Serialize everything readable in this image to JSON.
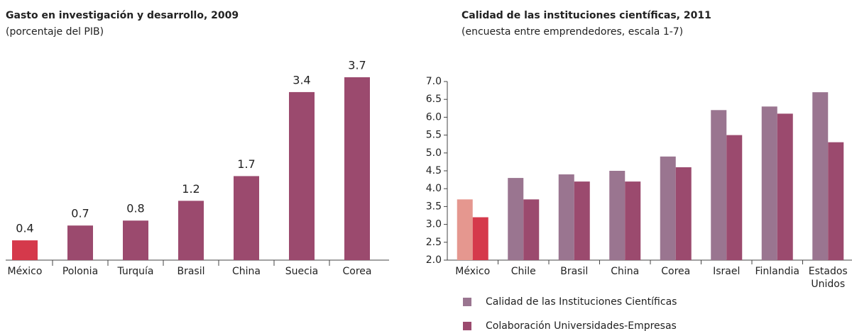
{
  "chart_data": [
    {
      "type": "bar",
      "title": "Gasto en investigación y desarrollo, 2009",
      "subtitle": "(porcentaje del PIB)",
      "categories": [
        "México",
        "Polonia",
        "Turquía",
        "Brasil",
        "China",
        "Suecia",
        "Corea"
      ],
      "values": [
        0.4,
        0.7,
        0.8,
        1.2,
        1.7,
        3.4,
        3.7
      ],
      "colors": [
        "#d5394b",
        "#9b4a6e",
        "#9b4a6e",
        "#9b4a6e",
        "#9b4a6e",
        "#9b4a6e",
        "#9b4a6e"
      ]
    },
    {
      "type": "grouped_bar",
      "title": "Calidad de las instituciones científicas, 2011",
      "subtitle": "(encuesta entre emprendedores, escala 1-7)",
      "categories": [
        "México",
        "Chile",
        "Brasil",
        "China",
        "Corea",
        "Israel",
        "Finlandia",
        "Estados Unidos"
      ],
      "series": [
        {
          "name": "Calidad de las Instituciones Científicas",
          "color": "#9a7590",
          "colors": [
            "#e5978f",
            "#9a7590",
            "#9a7590",
            "#9a7590",
            "#9a7590",
            "#9a7590",
            "#9a7590",
            "#9a7590"
          ],
          "values": [
            3.7,
            4.3,
            4.4,
            4.5,
            4.9,
            6.2,
            6.3,
            6.7
          ]
        },
        {
          "name": "Colaboración Universidades-Empresas",
          "color": "#9b4a6e",
          "colors": [
            "#d5394b",
            "#9b4a6e",
            "#9b4a6e",
            "#9b4a6e",
            "#9b4a6e",
            "#9b4a6e",
            "#9b4a6e",
            "#9b4a6e"
          ],
          "values": [
            3.2,
            3.7,
            4.2,
            4.2,
            4.6,
            5.5,
            6.1,
            5.3
          ]
        }
      ],
      "ylim": [
        2.0,
        7.0
      ],
      "yticks": [
        {
          "value": 2,
          "label": "2.0"
        },
        2.5,
        {
          "value": 3,
          "label": "3.0"
        },
        3.5,
        {
          "value": 4,
          "label": "4.0"
        },
        4.5,
        {
          "value": 5,
          "label": "5.0"
        },
        5.5,
        {
          "value": 6,
          "label": "6.0"
        },
        6.5,
        {
          "value": 7,
          "label": "7.0"
        }
      ]
    }
  ]
}
